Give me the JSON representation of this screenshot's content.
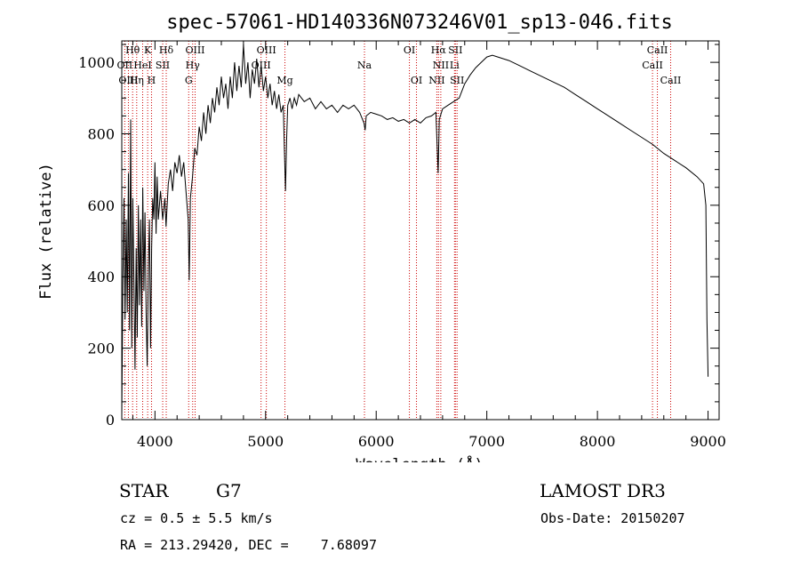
{
  "chart_data": {
    "type": "line",
    "title": "spec-57061-HD140336N073246V01_sp13-046.fits",
    "xlabel": "Wavelength (Å)",
    "ylabel": "Flux (relative)",
    "xlim": [
      3700,
      9100
    ],
    "ylim": [
      0,
      1060
    ],
    "xticks": [
      4000,
      5000,
      6000,
      7000,
      8000,
      9000
    ],
    "yticks": [
      0,
      200,
      400,
      600,
      800,
      1000
    ],
    "series": [
      {
        "name": "spectrum",
        "points": [
          [
            3700,
            10
          ],
          [
            3710,
            380
          ],
          [
            3720,
            620
          ],
          [
            3730,
            280
          ],
          [
            3740,
            560
          ],
          [
            3750,
            300
          ],
          [
            3760,
            690
          ],
          [
            3770,
            250
          ],
          [
            3780,
            840
          ],
          [
            3790,
            200
          ],
          [
            3800,
            620
          ],
          [
            3810,
            380
          ],
          [
            3820,
            140
          ],
          [
            3830,
            480
          ],
          [
            3840,
            230
          ],
          [
            3850,
            600
          ],
          [
            3860,
            320
          ],
          [
            3870,
            560
          ],
          [
            3880,
            260
          ],
          [
            3890,
            650
          ],
          [
            3900,
            360
          ],
          [
            3910,
            580
          ],
          [
            3920,
            300
          ],
          [
            3930,
            150
          ],
          [
            3940,
            420
          ],
          [
            3950,
            560
          ],
          [
            3960,
            200
          ],
          [
            3970,
            480
          ],
          [
            3980,
            620
          ],
          [
            3990,
            560
          ],
          [
            4000,
            720
          ],
          [
            4010,
            520
          ],
          [
            4020,
            680
          ],
          [
            4030,
            560
          ],
          [
            4050,
            640
          ],
          [
            4070,
            560
          ],
          [
            4090,
            620
          ],
          [
            4100,
            540
          ],
          [
            4120,
            660
          ],
          [
            4140,
            700
          ],
          [
            4160,
            640
          ],
          [
            4180,
            720
          ],
          [
            4200,
            690
          ],
          [
            4220,
            740
          ],
          [
            4240,
            680
          ],
          [
            4260,
            720
          ],
          [
            4280,
            640
          ],
          [
            4300,
            560
          ],
          [
            4310,
            390
          ],
          [
            4320,
            620
          ],
          [
            4340,
            680
          ],
          [
            4360,
            760
          ],
          [
            4380,
            740
          ],
          [
            4400,
            820
          ],
          [
            4420,
            780
          ],
          [
            4440,
            860
          ],
          [
            4460,
            800
          ],
          [
            4480,
            880
          ],
          [
            4500,
            830
          ],
          [
            4520,
            900
          ],
          [
            4540,
            860
          ],
          [
            4560,
            930
          ],
          [
            4580,
            880
          ],
          [
            4600,
            960
          ],
          [
            4620,
            900
          ],
          [
            4640,
            940
          ],
          [
            4660,
            870
          ],
          [
            4680,
            960
          ],
          [
            4700,
            900
          ],
          [
            4720,
            1000
          ],
          [
            4740,
            920
          ],
          [
            4760,
            990
          ],
          [
            4780,
            930
          ],
          [
            4800,
            1050
          ],
          [
            4820,
            940
          ],
          [
            4840,
            1000
          ],
          [
            4860,
            900
          ],
          [
            4880,
            980
          ],
          [
            4900,
            940
          ],
          [
            4920,
            1010
          ],
          [
            4940,
            930
          ],
          [
            4960,
            990
          ],
          [
            4980,
            920
          ],
          [
            5000,
            960
          ],
          [
            5020,
            900
          ],
          [
            5040,
            940
          ],
          [
            5060,
            880
          ],
          [
            5080,
            920
          ],
          [
            5100,
            870
          ],
          [
            5120,
            910
          ],
          [
            5140,
            860
          ],
          [
            5160,
            880
          ],
          [
            5170,
            760
          ],
          [
            5180,
            640
          ],
          [
            5190,
            780
          ],
          [
            5200,
            880
          ],
          [
            5220,
            900
          ],
          [
            5240,
            870
          ],
          [
            5260,
            900
          ],
          [
            5280,
            880
          ],
          [
            5300,
            910
          ],
          [
            5350,
            890
          ],
          [
            5400,
            900
          ],
          [
            5450,
            870
          ],
          [
            5500,
            890
          ],
          [
            5550,
            870
          ],
          [
            5600,
            880
          ],
          [
            5650,
            860
          ],
          [
            5700,
            880
          ],
          [
            5750,
            870
          ],
          [
            5800,
            880
          ],
          [
            5850,
            860
          ],
          [
            5890,
            830
          ],
          [
            5900,
            810
          ],
          [
            5910,
            850
          ],
          [
            5950,
            860
          ],
          [
            6000,
            855
          ],
          [
            6050,
            850
          ],
          [
            6100,
            840
          ],
          [
            6150,
            845
          ],
          [
            6200,
            835
          ],
          [
            6250,
            840
          ],
          [
            6300,
            830
          ],
          [
            6350,
            840
          ],
          [
            6400,
            830
          ],
          [
            6450,
            845
          ],
          [
            6500,
            850
          ],
          [
            6540,
            860
          ],
          [
            6560,
            690
          ],
          [
            6570,
            840
          ],
          [
            6600,
            870
          ],
          [
            6650,
            880
          ],
          [
            6700,
            890
          ],
          [
            6750,
            900
          ],
          [
            6800,
            940
          ],
          [
            6850,
            965
          ],
          [
            6900,
            985
          ],
          [
            6950,
            1000
          ],
          [
            7000,
            1015
          ],
          [
            7050,
            1020
          ],
          [
            7100,
            1015
          ],
          [
            7150,
            1010
          ],
          [
            7200,
            1005
          ],
          [
            7300,
            990
          ],
          [
            7400,
            975
          ],
          [
            7500,
            960
          ],
          [
            7600,
            945
          ],
          [
            7700,
            930
          ],
          [
            7800,
            910
          ],
          [
            7900,
            890
          ],
          [
            8000,
            870
          ],
          [
            8100,
            850
          ],
          [
            8200,
            830
          ],
          [
            8300,
            810
          ],
          [
            8400,
            790
          ],
          [
            8500,
            770
          ],
          [
            8600,
            745
          ],
          [
            8700,
            725
          ],
          [
            8800,
            705
          ],
          [
            8900,
            680
          ],
          [
            8960,
            660
          ],
          [
            8980,
            600
          ],
          [
            8990,
            280
          ],
          [
            9000,
            120
          ]
        ]
      }
    ],
    "line_markers": [
      {
        "label": "Hθ",
        "x": 3798,
        "row": 0
      },
      {
        "label": "OII",
        "x": 3727,
        "row": 1
      },
      {
        "label": "OIII",
        "x": 3760,
        "row": 2
      },
      {
        "label": "HeI",
        "x": 3889,
        "row": 1
      },
      {
        "label": "Hη",
        "x": 3835,
        "row": 2
      },
      {
        "label": "K",
        "x": 3934,
        "row": 0
      },
      {
        "label": "SII",
        "x": 4070,
        "row": 1
      },
      {
        "label": "H",
        "x": 3969,
        "row": 2
      },
      {
        "label": "Hδ",
        "x": 4102,
        "row": 0
      },
      {
        "label": "OIII",
        "x": 4363,
        "row": 0
      },
      {
        "label": "Hγ",
        "x": 4341,
        "row": 1
      },
      {
        "label": "G",
        "x": 4305,
        "row": 2
      },
      {
        "label": "OIII",
        "x": 5007,
        "row": 0
      },
      {
        "label": "OIII",
        "x": 4959,
        "row": 1
      },
      {
        "label": "Mg",
        "x": 5175,
        "row": 2
      },
      {
        "label": "Na",
        "x": 5894,
        "row": 1
      },
      {
        "label": "OI",
        "x": 6300,
        "row": 0
      },
      {
        "label": "OI",
        "x": 6364,
        "row": 2
      },
      {
        "label": "Hα",
        "x": 6563,
        "row": 0
      },
      {
        "label": "SII",
        "x": 6716,
        "row": 0
      },
      {
        "label": "NII",
        "x": 6584,
        "row": 1
      },
      {
        "label": "Li",
        "x": 6708,
        "row": 1
      },
      {
        "label": "NII",
        "x": 6548,
        "row": 2
      },
      {
        "label": "SII",
        "x": 6731,
        "row": 2
      },
      {
        "label": "CaII",
        "x": 8542,
        "row": 0
      },
      {
        "label": "CaII",
        "x": 8498,
        "row": 1
      },
      {
        "label": "CaII",
        "x": 8662,
        "row": 2
      }
    ]
  },
  "info": {
    "object_class": "STAR",
    "subclass": "G7",
    "cz": "cz = 0.5 ± 5.5 km/s",
    "coords": "RA = 213.29420, DEC =    7.68097",
    "survey": "LAMOST DR3",
    "obs_date": "Obs-Date: 20150207"
  },
  "colors": {
    "spectrum": "#000000",
    "marker_line": "#cc0000"
  }
}
